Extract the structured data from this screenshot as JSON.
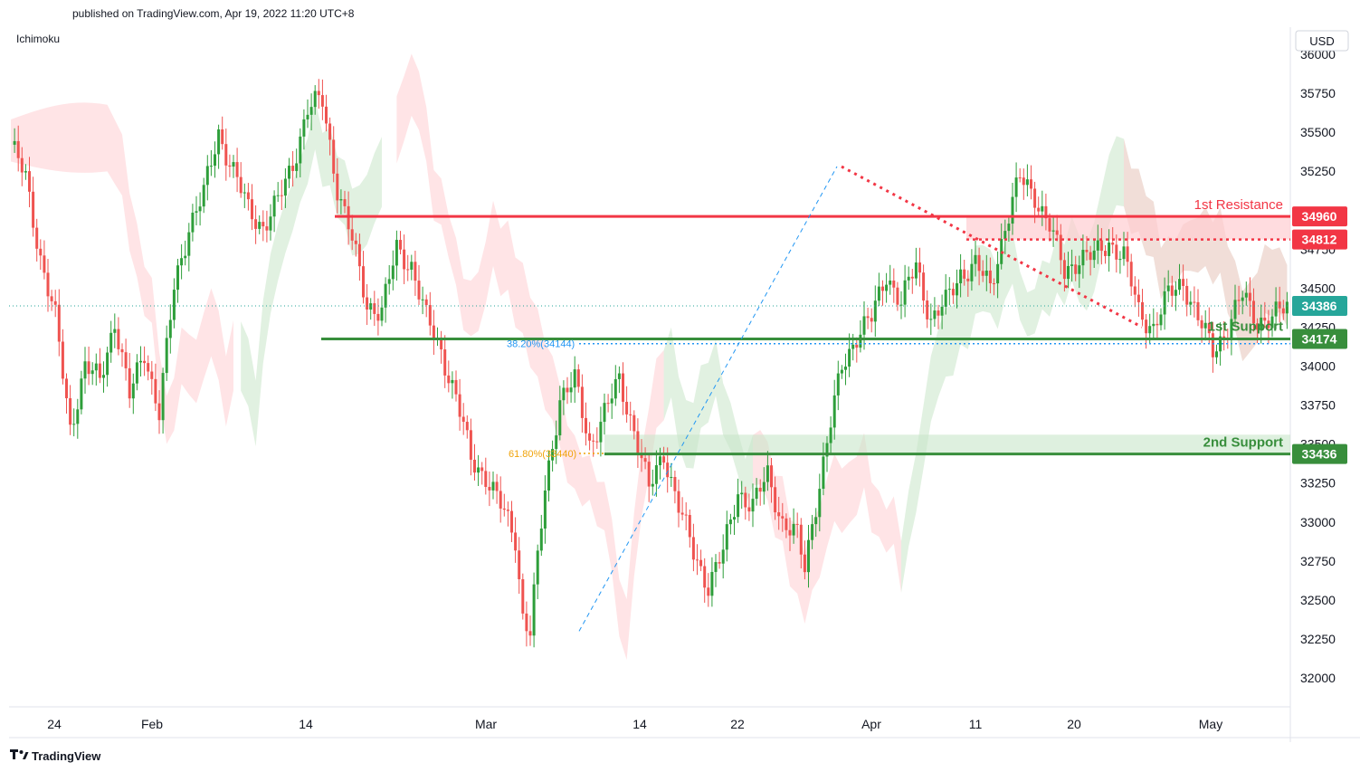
{
  "header": {
    "published": "published on TradingView.com, Apr 19, 2022 11:20 UTC+8"
  },
  "indicator_label": "Ichimoku",
  "currency": "USD",
  "footer": {
    "brand": "TradingView"
  },
  "colors": {
    "up": "#26a69a",
    "candle_up": "#2e9e3a",
    "candle_down": "#ef5350",
    "resistance": "#f23645",
    "support": "#388e3c",
    "fib": "#2196f3",
    "fib2": "#f0a30a",
    "cloud_green": "#c8e6c9",
    "cloud_red": "#ffcdd2"
  },
  "levels": {
    "resistance1": {
      "label": "1st Resistance",
      "value": 34960,
      "tag": "34960"
    },
    "resistance2": {
      "value": 34812,
      "tag": "34812"
    },
    "last_price": {
      "value": 34386,
      "tag": "34386"
    },
    "support1": {
      "label": "1st Support",
      "value": 34174,
      "tag": "34174"
    },
    "support2": {
      "label": "2nd Support",
      "value": 33436,
      "tag": "33436"
    },
    "fib1": {
      "label": "38.20%(34144)",
      "value": 34144
    },
    "fib2": {
      "label": "61.80%(33440)",
      "value": 33440
    }
  },
  "chart_data": {
    "type": "candlestick",
    "y_ticks": [
      36000,
      35750,
      35500,
      35250,
      35000,
      34750,
      34500,
      34250,
      34000,
      33750,
      33500,
      33250,
      33000,
      32750,
      32500,
      32250,
      32000
    ],
    "y_tick_labels": [
      "36000",
      "35750",
      "35500",
      "35250",
      "",
      "34750",
      "34500",
      "34250",
      "34000",
      "33750",
      "33500",
      "33250",
      "33000",
      "32750",
      "32500",
      "32250",
      "32000"
    ],
    "ylim": [
      31820,
      36060
    ],
    "x_ticks": [
      "24",
      "Feb",
      "14",
      "Mar",
      "14",
      "22",
      "Apr",
      "11",
      "20",
      "May"
    ],
    "price_path": [
      [
        0,
        35420
      ],
      [
        4,
        35200
      ],
      [
        8,
        34700
      ],
      [
        12,
        34300
      ],
      [
        16,
        33600
      ],
      [
        20,
        34000
      ],
      [
        24,
        33900
      ],
      [
        28,
        34300
      ],
      [
        32,
        33800
      ],
      [
        36,
        34100
      ],
      [
        40,
        33700
      ],
      [
        44,
        34500
      ],
      [
        48,
        34900
      ],
      [
        52,
        35100
      ],
      [
        56,
        35500
      ],
      [
        60,
        35250
      ],
      [
        64,
        35000
      ],
      [
        68,
        34900
      ],
      [
        72,
        35050
      ],
      [
        76,
        35300
      ],
      [
        80,
        35650
      ],
      [
        84,
        35700
      ],
      [
        88,
        35150
      ],
      [
        92,
        34800
      ],
      [
        96,
        34400
      ],
      [
        100,
        34350
      ],
      [
        104,
        34750
      ],
      [
        108,
        34650
      ],
      [
        112,
        34300
      ],
      [
        116,
        34100
      ],
      [
        120,
        33800
      ],
      [
        124,
        33400
      ],
      [
        128,
        33300
      ],
      [
        132,
        33100
      ],
      [
        136,
        32900
      ],
      [
        138,
        32400
      ],
      [
        140,
        32300
      ],
      [
        144,
        33200
      ],
      [
        148,
        33800
      ],
      [
        152,
        33900
      ],
      [
        156,
        33500
      ],
      [
        160,
        33700
      ],
      [
        164,
        33900
      ],
      [
        168,
        33600
      ],
      [
        172,
        33200
      ],
      [
        176,
        33450
      ],
      [
        180,
        33100
      ],
      [
        184,
        32800
      ],
      [
        188,
        32600
      ],
      [
        192,
        32800
      ],
      [
        196,
        33200
      ],
      [
        200,
        33100
      ],
      [
        204,
        33300
      ],
      [
        208,
        33000
      ],
      [
        212,
        32900
      ],
      [
        214,
        32700
      ],
      [
        216,
        33000
      ],
      [
        220,
        33500
      ],
      [
        224,
        34000
      ],
      [
        228,
        34200
      ],
      [
        232,
        34300
      ],
      [
        236,
        34600
      ],
      [
        240,
        34400
      ],
      [
        244,
        34650
      ],
      [
        248,
        34300
      ],
      [
        252,
        34400
      ],
      [
        256,
        34600
      ],
      [
        260,
        34650
      ],
      [
        264,
        34500
      ],
      [
        268,
        34900
      ],
      [
        272,
        35200
      ],
      [
        276,
        35100
      ],
      [
        280,
        34900
      ],
      [
        284,
        34600
      ],
      [
        288,
        34700
      ],
      [
        292,
        34700
      ],
      [
        296,
        34800
      ],
      [
        300,
        34700
      ],
      [
        304,
        34350
      ],
      [
        308,
        34250
      ],
      [
        312,
        34450
      ],
      [
        316,
        34550
      ],
      [
        320,
        34300
      ],
      [
        324,
        34100
      ],
      [
        328,
        34250
      ],
      [
        332,
        34450
      ],
      [
        336,
        34300
      ],
      [
        340,
        34300
      ],
      [
        344,
        34386
      ]
    ],
    "cloud": [
      {
        "from": 0,
        "to": 60,
        "color": "red"
      },
      {
        "from": 62,
        "to": 100,
        "color": "green"
      },
      {
        "from": 104,
        "to": 176,
        "color": "red"
      },
      {
        "from": 176,
        "to": 200,
        "color": "green"
      },
      {
        "from": 200,
        "to": 240,
        "color": "red"
      },
      {
        "from": 240,
        "to": 344,
        "color": "green"
      },
      {
        "from": 300,
        "to": 360,
        "color": "red"
      }
    ]
  }
}
